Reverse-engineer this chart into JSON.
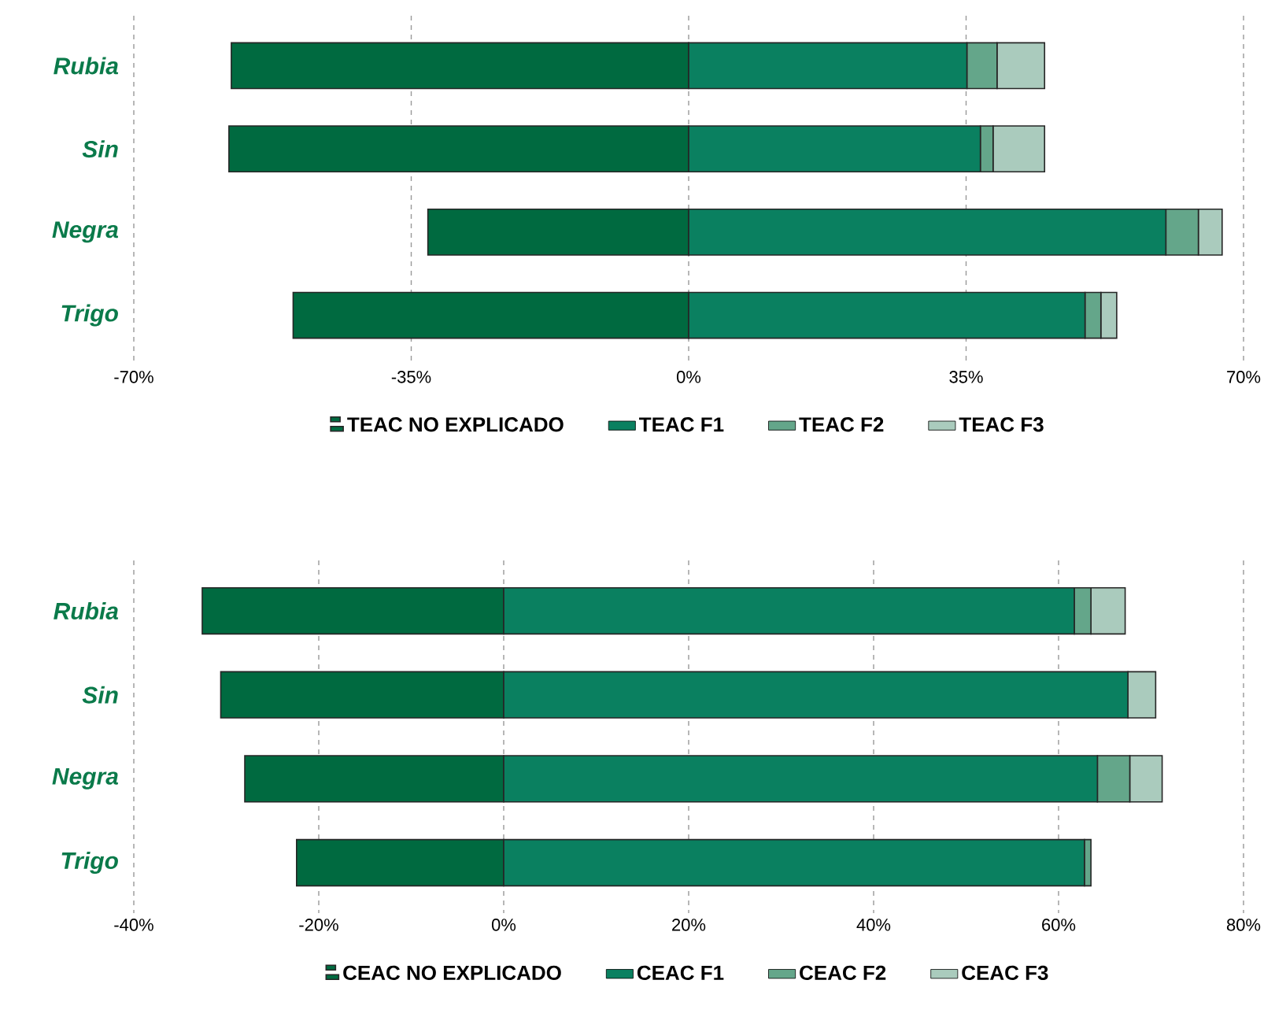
{
  "chart_data": [
    {
      "type": "bar",
      "orientation": "horizontal",
      "stacked": true,
      "categories": [
        "Rubia",
        "Sin",
        "Negra",
        "Trigo"
      ],
      "series": [
        {
          "name": "TEAC NO EXPLICADO",
          "color": "#006a40",
          "values": [
            -57.7,
            -58.0,
            -32.9,
            -49.9
          ]
        },
        {
          "name": "TEAC F1",
          "color": "#0a8060",
          "values": [
            35.1,
            36.8,
            60.2,
            50.0
          ]
        },
        {
          "name": "TEAC F2",
          "color": "#64a68a",
          "values": [
            3.8,
            1.6,
            4.1,
            2.0
          ]
        },
        {
          "name": "TEAC F3",
          "color": "#aacbbd",
          "values": [
            6.0,
            6.5,
            3.0,
            2.0
          ]
        }
      ],
      "xlim": [
        -70,
        70
      ],
      "xticks": [
        {
          "value": -70,
          "label": "-70%"
        },
        {
          "value": -35,
          "label": "-35%"
        },
        {
          "value": 0,
          "label": "0%"
        },
        {
          "value": 35,
          "label": "35%"
        },
        {
          "value": 70,
          "label": "70%"
        }
      ],
      "grid": "x",
      "legend": "bottom"
    },
    {
      "type": "bar",
      "orientation": "horizontal",
      "stacked": true,
      "categories": [
        "Rubia",
        "Sin",
        "Negra",
        "Trigo"
      ],
      "series": [
        {
          "name": "CEAC NO EXPLICADO",
          "color": "#006a40",
          "values": [
            -32.6,
            -30.6,
            -28.0,
            -22.4
          ]
        },
        {
          "name": "CEAC F1",
          "color": "#0a8060",
          "values": [
            61.7,
            67.5,
            64.2,
            62.8
          ]
        },
        {
          "name": "CEAC F2",
          "color": "#64a68a",
          "values": [
            1.8,
            0,
            3.5,
            0.7
          ]
        },
        {
          "name": "CEAC F3",
          "color": "#aacbbd",
          "values": [
            3.7,
            3.0,
            3.5,
            0
          ]
        }
      ],
      "xlim": [
        -40,
        80
      ],
      "xticks": [
        {
          "value": -40,
          "label": "-40%"
        },
        {
          "value": -20,
          "label": "-20%"
        },
        {
          "value": 0,
          "label": "0%"
        },
        {
          "value": 20,
          "label": "20%"
        },
        {
          "value": 40,
          "label": "40%"
        },
        {
          "value": 60,
          "label": "60%"
        },
        {
          "value": 80,
          "label": "80%"
        }
      ],
      "grid": "x",
      "legend": "bottom"
    }
  ]
}
